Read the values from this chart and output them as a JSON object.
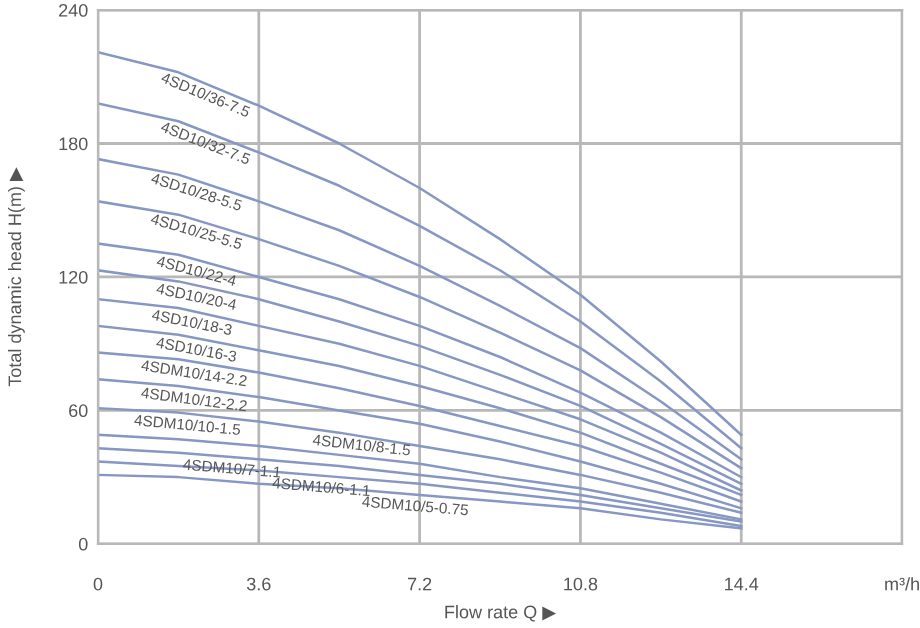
{
  "chart_data": {
    "type": "line",
    "xlabel": "Flow rate Q ▶",
    "ylabel": "Total dynamic head H(m) ▶",
    "x": [
      0,
      1.8,
      3.6,
      5.4,
      7.2,
      9,
      10.8,
      12.6,
      14.4
    ],
    "series": [
      {
        "name": "4SD10/36-7.5",
        "color": "#8797c4",
        "values": [
          221,
          212,
          197,
          180,
          160,
          137,
          112,
          82,
          49
        ]
      },
      {
        "name": "4SD10/32-7.5",
        "color": "#8797c4",
        "values": [
          198,
          190,
          176,
          161,
          143,
          123,
          100,
          73,
          43
        ]
      },
      {
        "name": "4SD10/28-5.5",
        "color": "#8797c4",
        "values": [
          173,
          166,
          154,
          141,
          125,
          107,
          88,
          64,
          38
        ]
      },
      {
        "name": "4SD10/25-5.5",
        "color": "#8797c4",
        "values": [
          154,
          148,
          137,
          125,
          111,
          95,
          78,
          57,
          34
        ]
      },
      {
        "name": "4SD10/22-4",
        "color": "#8797c4",
        "values": [
          135,
          130,
          120,
          110,
          98,
          84,
          68,
          50,
          30
        ]
      },
      {
        "name": "4SD10/20-4",
        "color": "#8797c4",
        "values": [
          123,
          118,
          110,
          100,
          89,
          76,
          62,
          45,
          27
        ]
      },
      {
        "name": "4SD10/18-3",
        "color": "#8797c4",
        "values": [
          110,
          106,
          98,
          90,
          80,
          68,
          56,
          41,
          24
        ]
      },
      {
        "name": "4SD10/16-3",
        "color": "#8797c4",
        "values": [
          98,
          94,
          87,
          80,
          71,
          61,
          50,
          36,
          22
        ]
      },
      {
        "name": "4SDM10/14-2.2",
        "color": "#8797c4",
        "values": [
          86,
          83,
          77,
          70,
          62,
          53,
          44,
          32,
          19
        ]
      },
      {
        "name": "4SDM10/12-2.2",
        "color": "#8797c4",
        "values": [
          74,
          71,
          66,
          60,
          54,
          46,
          37,
          27,
          16
        ]
      },
      {
        "name": "4SDM10/10-1.5",
        "color": "#8797c4",
        "values": [
          61,
          59,
          55,
          50,
          44,
          38,
          31,
          23,
          14
        ]
      },
      {
        "name": "4SDM10/8-1.5",
        "color": "#8797c4",
        "values": [
          49,
          47,
          44,
          40,
          36,
          30,
          25,
          18,
          11
        ]
      },
      {
        "name": "4SDM10/7-1.1",
        "color": "#8797c4",
        "values": [
          43,
          41,
          38,
          35,
          31,
          27,
          22,
          16,
          10
        ]
      },
      {
        "name": "4SDM10/6-1.1",
        "color": "#8797c4",
        "values": [
          37,
          35,
          33,
          30,
          27,
          23,
          19,
          14,
          8
        ]
      },
      {
        "name": "4SDM10/5-0.75",
        "color": "#8797c4",
        "values": [
          31,
          30,
          27,
          25,
          22,
          19,
          16,
          11,
          7
        ]
      }
    ],
    "xlim": [
      0,
      18
    ],
    "ylim": [
      0,
      240
    ],
    "xticks": [
      0,
      3.6,
      7.2,
      10.8,
      14.4,
      {
        "value": 18,
        "label": "m³/h"
      }
    ],
    "yticks": [
      0,
      60,
      120,
      180,
      240
    ],
    "grid": true,
    "marker": "none",
    "line_style": "solid"
  }
}
